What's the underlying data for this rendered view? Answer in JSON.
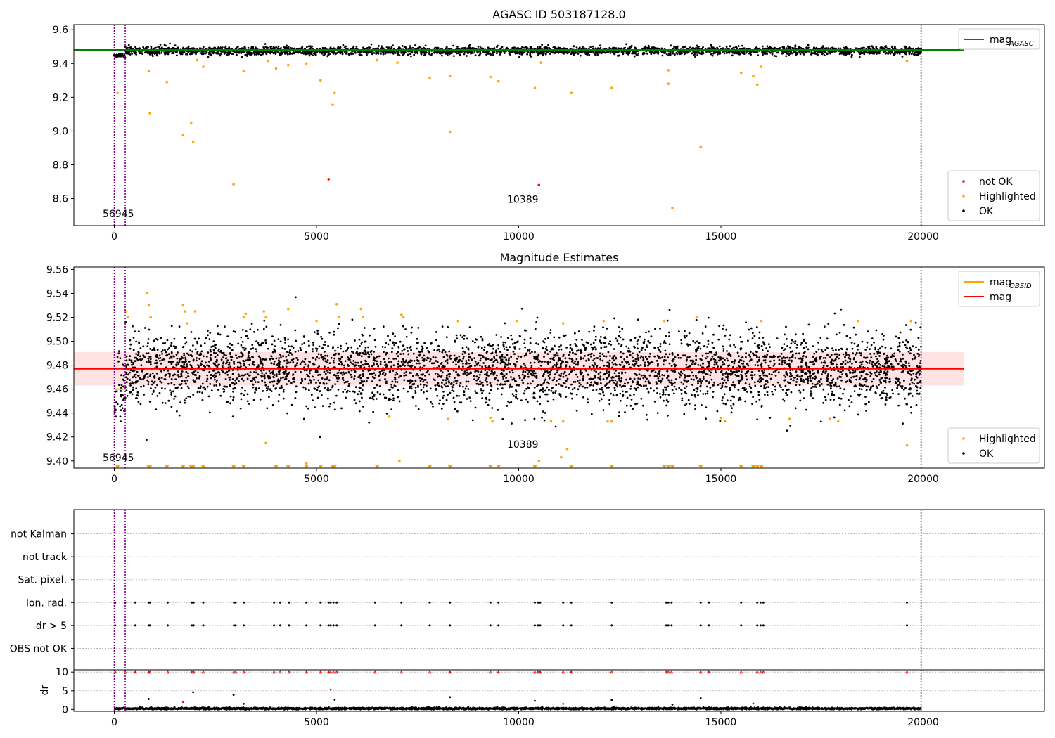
{
  "chart_data": [
    {
      "id": "p1",
      "type": "scatter",
      "title": "AGASC ID 503187128.0",
      "xlim": [
        -1000,
        23000
      ],
      "ylim": [
        8.44,
        9.63
      ],
      "xticks": [
        0,
        5000,
        10000,
        15000,
        20000
      ],
      "yticks": [
        8.6,
        8.8,
        9.0,
        9.2,
        9.4,
        9.6
      ],
      "ytick_decimals": 1,
      "grid": false,
      "legend_upper_placement": "upper right",
      "legend_upper": [
        {
          "kind": "line",
          "label": "mag",
          "subscript": "AGASC",
          "color": "#008000"
        }
      ],
      "legend_lower_placement": "lower right",
      "legend_lower": [
        {
          "kind": "dot",
          "label": "not OK",
          "color": "#ff0000"
        },
        {
          "kind": "dot",
          "label": "Highlighted",
          "color": "#ffa500"
        },
        {
          "kind": "dot",
          "label": "OK",
          "color": "#000000"
        }
      ],
      "annotations": [
        {
          "text": "56945",
          "x": 100,
          "y": 8.49
        },
        {
          "text": "10389",
          "x": 10100,
          "y": 8.575
        }
      ],
      "vlines": [
        {
          "x": 0,
          "color": "#800080"
        },
        {
          "x": 270,
          "color": "#800080"
        },
        {
          "x": 19950,
          "color": "#800080"
        }
      ],
      "hline": {
        "y": 9.48,
        "color": "#008000",
        "x0": -1000,
        "x1": 21000
      },
      "band": {
        "center": 9.475,
        "spread": 0.02,
        "x0": 0,
        "x1": 19950,
        "seed": 11,
        "color": "#000000"
      },
      "series": [
        {
          "name": "not OK",
          "color": "#ff0000",
          "x": [
            5300,
            10500
          ],
          "y": [
            8.715,
            8.68
          ]
        },
        {
          "name": "Highlighted",
          "color": "#ffa500",
          "x": [
            80,
            850,
            880,
            1300,
            1700,
            1900,
            1950,
            2050,
            2200,
            2950,
            3200,
            3800,
            4000,
            4300,
            4750,
            5100,
            5400,
            5450,
            6500,
            7000,
            7800,
            8300,
            8300,
            9300,
            9500,
            10400,
            10550,
            11300,
            12300,
            13700,
            13700,
            13800,
            14500,
            15500,
            15800,
            15900,
            16000,
            19600
          ],
          "y": [
            9.225,
            9.355,
            9.105,
            9.29,
            8.975,
            9.05,
            8.935,
            9.42,
            9.38,
            8.685,
            9.355,
            9.415,
            9.37,
            9.39,
            9.4,
            9.3,
            9.155,
            9.225,
            9.42,
            9.405,
            9.315,
            8.995,
            9.325,
            9.32,
            9.295,
            9.255,
            9.405,
            9.225,
            9.255,
            9.36,
            9.28,
            8.545,
            8.905,
            9.345,
            9.325,
            9.275,
            9.38,
            9.415
          ]
        }
      ]
    },
    {
      "id": "p2",
      "type": "scatter",
      "title": "Magnitude Estimates",
      "xlim": [
        -1000,
        23000
      ],
      "ylim": [
        9.394,
        9.562
      ],
      "xticks": [
        0,
        5000,
        10000,
        15000,
        20000
      ],
      "yticks": [
        9.4,
        9.42,
        9.44,
        9.46,
        9.48,
        9.5,
        9.52,
        9.54,
        9.56
      ],
      "ytick_decimals": 2,
      "grid": false,
      "legend_upper_placement": "upper right",
      "legend_upper": [
        {
          "kind": "line",
          "label": "mag",
          "subscript": "OBSID",
          "color": "#ffa500"
        },
        {
          "kind": "line",
          "label": "mag",
          "subscript": "",
          "color": "#ff0000"
        }
      ],
      "legend_lower_placement": "lower right",
      "legend_lower": [
        {
          "kind": "dot",
          "label": "Highlighted",
          "color": "#ffa500"
        },
        {
          "kind": "dot",
          "label": "OK",
          "color": "#000000"
        }
      ],
      "annotations": [
        {
          "text": "56945",
          "x": 100,
          "y": 9.4
        },
        {
          "text": "10389",
          "x": 10100,
          "y": 9.411
        }
      ],
      "vlines": [
        {
          "x": 0,
          "color": "#800080"
        },
        {
          "x": 270,
          "color": "#800080"
        },
        {
          "x": 19950,
          "color": "#800080"
        }
      ],
      "hline": {
        "y": 9.477,
        "color": "#ff0000",
        "x0": -1000,
        "x1": 21000
      },
      "span": {
        "y0": 9.463,
        "y1": 9.491,
        "x0": -1000,
        "x1": 21000,
        "color": "#ffc0c0"
      },
      "obsid_segment": {
        "y": 9.46,
        "x0": 0,
        "x1": 270,
        "color": "#ffa500"
      },
      "band": {
        "center": 9.477,
        "spread": 0.015,
        "x0": 0,
        "x1": 19950,
        "seed": 7,
        "color": "#000000"
      },
      "series": [
        {
          "name": "Highlighted",
          "color": "#ffa500",
          "x": [
            280,
            330,
            800,
            850,
            900,
            1700,
            1750,
            1800,
            2000,
            3200,
            3250,
            3700,
            3750,
            4300,
            5000,
            5500,
            5550,
            6100,
            6150,
            7100,
            7150,
            8500,
            9950,
            11100,
            12100,
            13600,
            14400,
            16000,
            18400,
            19700,
            19600,
            3750,
            4750,
            6800,
            8250,
            9300,
            9350,
            10800,
            11100,
            11200,
            12200,
            12300,
            15000,
            15100,
            16700,
            17700,
            17900,
            10500,
            7050,
            11050
          ],
          "y": [
            9.525,
            9.52,
            9.54,
            9.53,
            9.52,
            9.53,
            9.525,
            9.515,
            9.525,
            9.52,
            9.523,
            9.525,
            9.52,
            9.527,
            9.517,
            9.531,
            9.52,
            9.527,
            9.52,
            9.522,
            9.52,
            9.517,
            9.517,
            9.515,
            9.517,
            9.517,
            9.52,
            9.517,
            9.517,
            9.517,
            9.413,
            9.415,
            9.398,
            9.437,
            9.435,
            9.436,
            9.433,
            9.433,
            9.433,
            9.41,
            9.433,
            9.433,
            9.436,
            9.433,
            9.435,
            9.435,
            9.433,
            9.4,
            9.4,
            9.403
          ]
        },
        {
          "name": "Highlighted-low",
          "color": "#ffa500",
          "x": [
            80,
            850,
            880,
            1300,
            1700,
            1900,
            1950,
            2200,
            2950,
            3200,
            4000,
            4300,
            4750,
            5100,
            5400,
            5450,
            6500,
            7800,
            8300,
            9300,
            9500,
            10400,
            11300,
            12300,
            13600,
            13700,
            13800,
            14500,
            15500,
            15800,
            15900,
            16000
          ],
          "y": [
            9.395,
            9.395,
            9.395,
            9.395,
            9.395,
            9.395,
            9.395,
            9.395,
            9.395,
            9.395,
            9.395,
            9.395,
            9.395,
            9.395,
            9.395,
            9.395,
            9.395,
            9.395,
            9.395,
            9.395,
            9.395,
            9.395,
            9.395,
            9.395,
            9.395,
            9.395,
            9.395,
            9.395,
            9.395,
            9.395,
            9.395,
            9.395
          ]
        }
      ]
    },
    {
      "id": "p3",
      "type": "scatter",
      "title": "",
      "xlim": [
        -1000,
        23000
      ],
      "categories": [
        "OBS not OK",
        "dr > 5",
        "Ion. rad.",
        "Sat. pixel.",
        "not track",
        "not Kalman"
      ],
      "grid": true,
      "vlines": [
        {
          "x": 0,
          "color": "#800080"
        },
        {
          "x": 270,
          "color": "#800080"
        },
        {
          "x": 19950,
          "color": "#800080"
        }
      ],
      "flag_x": [
        20,
        270,
        520,
        850,
        880,
        1320,
        1920,
        1960,
        2200,
        2960,
        3000,
        3200,
        3950,
        4100,
        4320,
        4750,
        5100,
        5300,
        5350,
        5420,
        5500,
        6450,
        7100,
        7800,
        8300,
        9300,
        9500,
        10400,
        10480,
        10530,
        11100,
        11300,
        12300,
        13650,
        13700,
        13780,
        14500,
        14700,
        15500,
        15900,
        15980,
        16050,
        19600
      ],
      "flag_rows": [
        "dr > 5",
        "Ion. rad."
      ]
    },
    {
      "id": "p4",
      "type": "scatter",
      "title": "",
      "ylabel": "dr",
      "xlim": [
        -1000,
        23000
      ],
      "ylim": [
        -0.5,
        10.6
      ],
      "xticks": [
        0,
        5000,
        10000,
        15000,
        20000
      ],
      "yticks": [
        0,
        5,
        10
      ],
      "ytick_decimals": 0,
      "grid": true,
      "vlines": [
        {
          "x": 0,
          "color": "#800080"
        },
        {
          "x": 270,
          "color": "#800080"
        },
        {
          "x": 19950,
          "color": "#800080"
        }
      ],
      "band": {
        "center": 0.25,
        "spread": 0.12,
        "x0": 0,
        "x1": 19950,
        "seed": 3,
        "color": "#000000"
      },
      "capped_value": 10,
      "small_points": {
        "x": [
          850,
          1700,
          1950,
          2950,
          3200,
          5350,
          5450,
          8300,
          10400,
          11100,
          12300,
          13800,
          14500,
          15800
        ],
        "y": [
          2.8,
          2.0,
          4.6,
          3.9,
          1.5,
          5.3,
          2.6,
          3.3,
          2.3,
          1.5,
          2.5,
          1.3,
          3.0,
          1.6
        ]
      }
    }
  ]
}
